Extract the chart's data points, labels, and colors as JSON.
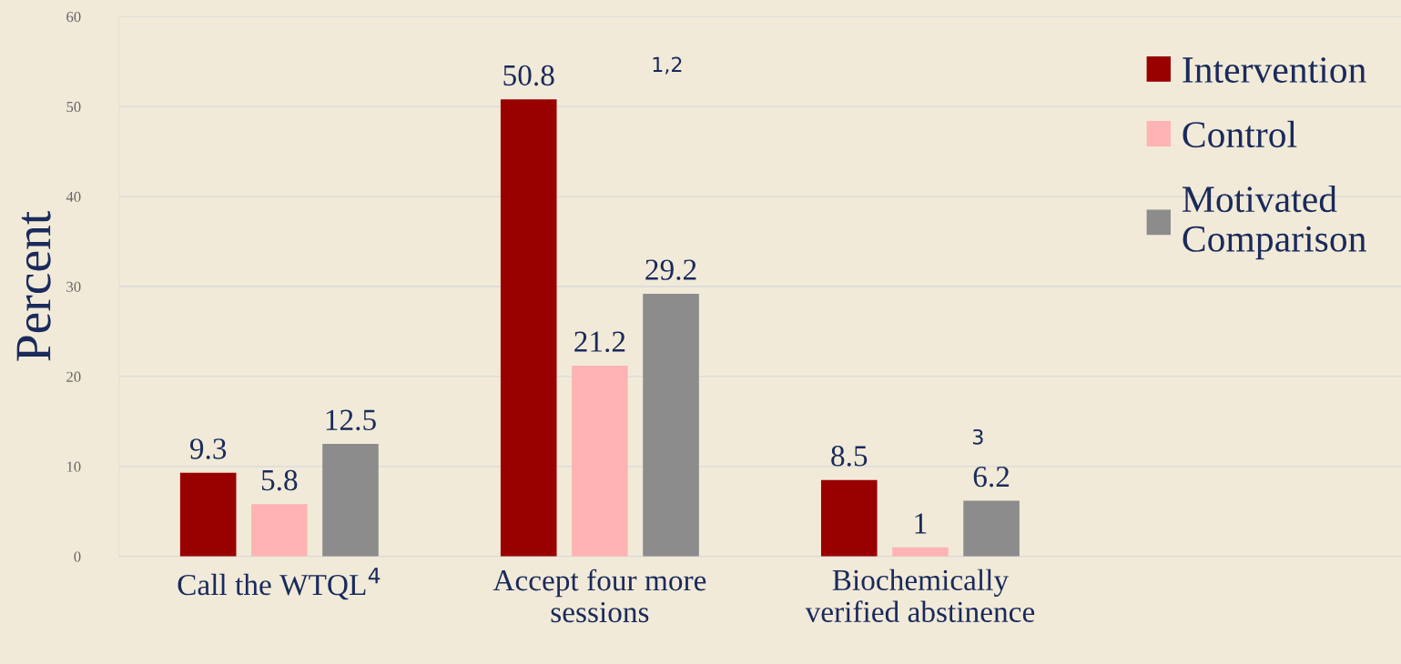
{
  "chart_data": {
    "type": "bar",
    "ylabel": "Percent",
    "categories": [
      "Call the WTQL$^{4}$",
      "Accept four more\nsessions",
      "Biochemically\nverified abstinence"
    ],
    "series": [
      {
        "name": "Intervention",
        "color": "#990000",
        "values": [
          9.3,
          50.8,
          8.5
        ]
      },
      {
        "name": "Control",
        "color": "#ffb3b3",
        "values": [
          5.8,
          21.2,
          1
        ]
      },
      {
        "name": "Motivated\nComparison",
        "color": "#8c8c8c",
        "values": [
          12.5,
          29.2,
          6.2
        ]
      }
    ],
    "annotations": [
      "1,2",
      "3"
    ],
    "ylim": [
      0,
      60
    ],
    "yticks": [
      0,
      10,
      20,
      30,
      40,
      50,
      60
    ],
    "grid": "y",
    "legend": "right",
    "data_labels": true
  }
}
